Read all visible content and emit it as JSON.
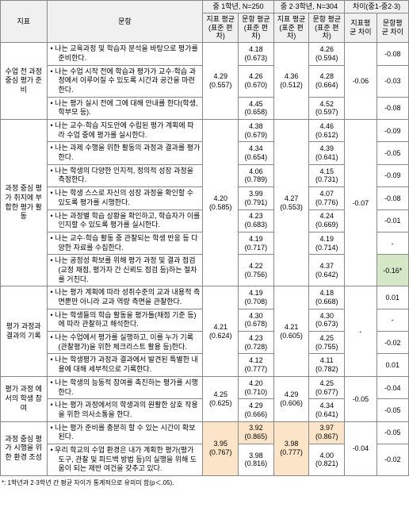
{
  "headers": {
    "indicator": "지표",
    "item": "문항",
    "g1": "중 1학년, N=250",
    "g23": "중 2·3학년, N=304",
    "diff": "차이(중1-중2·3)",
    "ind_mean": "지표\n평균\n(표준\n편차)",
    "item_mean": "문항\n평균\n(표준\n편차)",
    "ind_mean2": "지표\n평균\n(표준\n편차)",
    "item_mean2": "문항\n평균\n(표준\n편\n차)",
    "ind_diff": "지표평\n균\n차이",
    "item_diff": "문항평\n균\n차이"
  },
  "sections": [
    {
      "label": "수업 전\n과정 중심\n평가 준비",
      "g1_ind": "4.29\n(0.557)",
      "g23_ind": "4.36\n(0.512)",
      "ind_diff": "-0.06",
      "rows": [
        {
          "text": "나는 교육과정 및 학습자 분석을 바탕으로 평가를 준비한다.",
          "g1": "4.18\n(0.673)",
          "g23": "4.26\n(0.594)",
          "diff": "-0.08"
        },
        {
          "text": "나는 수업 시작 전에 학습과 평가가 교수·학습 과정에서 이루어질 수 있도록 시간과 공간을 마련한다.",
          "g1": "4.26\n(0.670)",
          "g23": "4.28\n(0.664)",
          "diff": "-0.03"
        },
        {
          "text": "나는 평가 실시 전에 그에 대해 안내를 한다(학생, 학부모 등).",
          "g1": "4.45\n(0.658)",
          "g23": "4.52\n(0.597)",
          "diff": "-0.08"
        }
      ]
    },
    {
      "label": "과정 중심\n평가\n취지에\n부합한\n평가 활동",
      "g1_ind": "4.20\n(0.585)",
      "g23_ind": "4.27\n(0.553)",
      "ind_diff": "-0.07",
      "rows": [
        {
          "text": "나는 교수·학습 지도안에 수립된 평가 계획에 따라 수업 중에 평가를 실시한다.",
          "g1": "4.38\n(0.679)",
          "g23": "4.46\n(0.612)",
          "diff": "-0.09"
        },
        {
          "text": "나는 과제 수행을 위한 활동의 과정과 결과를 평가한다.",
          "g1": "4.34\n(0.654)",
          "g23": "4.39\n(0.641)",
          "diff": "-0.05"
        },
        {
          "text": "나는 학생의 다양한 인지적, 정의적 성장 과정을 측정한다.",
          "g1": "4.06\n(0.789)",
          "g23": "4.15\n(0.731)",
          "diff": "-0.09"
        },
        {
          "text": "나는 학생 스스로 자신의 성장 과정을 확인할 수 있도록 평가를 시행한다.",
          "g1": "3.99\n(0.791)",
          "g23": "4.07\n(0.776)",
          "diff": "-0.08"
        },
        {
          "text": "나는 과정별 학습 상황을 확인하고, 학습자가 이를 인지할 수 있도록 평가를 실시한다.",
          "g1": "4.23\n(0.683)",
          "g23": "4.24\n(0.669)",
          "diff": "-0.01"
        },
        {
          "text": "나는 교수·학습 활동 중 관찰되는 학생 반응 등 다양한 자료를 수집한다.",
          "g1": "4.19\n(0.717)",
          "g23": "4.19\n(0.714)",
          "diff": "-"
        },
        {
          "text": "나는 공정성 확보를 위해 평가 과정 및 결과 점검(교정 채점, 평가자 간 신뢰도 점검 등)하는 절차를 거친다.",
          "g1": "4.22\n(0.756)",
          "g23": "4.37\n(0.642)",
          "diff": "-0.16*",
          "hl": "green"
        }
      ]
    },
    {
      "label": "평가\n과정과\n결과의\n기록",
      "g1_ind": "4.21\n(0.624)",
      "g23_ind": "4.21\n(0.605)",
      "ind_diff": "-",
      "rows": [
        {
          "text": "나는 평가 계획에 따라 성취수준의 교과 내용적 측면뿐만 아니라 교과 역량 측면을 관찰한다.",
          "g1": "4.19\n(0.708)",
          "g23": "4.18\n(0.668)",
          "diff": "0.01"
        },
        {
          "text": "나는 학생들의 학습 활동을 평가틀(채점 기준 등)에 따라 관찰하고 해석한다.",
          "g1": "4.30\n(0.678)",
          "g23": "4.30\n(0.673)",
          "diff": "-"
        },
        {
          "text": "나는 수업에서 평가를 실행하고, 이를 누가 기록(관찰평가)을 위한 체크리스트 활용 등)한다.",
          "g1": "4.23\n(0.728)",
          "g23": "4.25\n(0.755)",
          "diff": "-0.02"
        },
        {
          "text": "나는 학생평가 과정과 결과에서 발견된 특별한 내용에 대해 세부적으로 기록한다.",
          "g1": "4.12\n(0.777)",
          "g23": "4.11\n(0.782)",
          "diff": "0.01"
        }
      ]
    },
    {
      "label": "평가 과정\n에서의\n학생 참여",
      "g1_ind": "4.25\n(0.625)",
      "g23_ind": "4.29\n(0.606)",
      "ind_diff": "-0.05",
      "rows": [
        {
          "text": "나는 학생의 능동적 참여를 촉진하는 평가를 시행한다.",
          "g1": "4.20\n(0.710)",
          "g23": "4.25\n(0.677)",
          "diff": "-0.04"
        },
        {
          "text": "나는 평가 과정에서의 학생과의 원활한 상호 작용을 위한 의사소통을 한다.",
          "g1": "4.29\n(0.666)",
          "g23": "4.34\n(0.641)",
          "diff": "-0.05"
        }
      ]
    },
    {
      "label": "과정 중심\n평가\n시행을\n위한 환경\n조성",
      "g1_ind": "3.95\n(0.767)",
      "g23_ind": "3.98\n(0.777)",
      "ind_diff": "-0.04",
      "hl_ind": true,
      "rows": [
        {
          "text": "나는 평가 준비를 충분히 할 수 있는 시간이 확보된다.",
          "g1": "3.92\n(0.865)",
          "g23": "3.97\n(0.867)",
          "diff": "-0.05",
          "hl": "orange"
        },
        {
          "text": "우리 학교의 수업 환경은 내가 계획한 평가(평가 도구, 관찰 및 피드백 방법 등)의 실행을 위해 도움이 되는 제반 여건을 갖추고 있다.",
          "g1": "3.98\n(0.816)",
          "g23": "4.00\n(0.821)",
          "diff": "-0.02"
        }
      ]
    }
  ],
  "footnote": "*: 1학년과 2·3학년 간 평균 차이가 통계적으로 유의미 함(p＜.05)."
}
